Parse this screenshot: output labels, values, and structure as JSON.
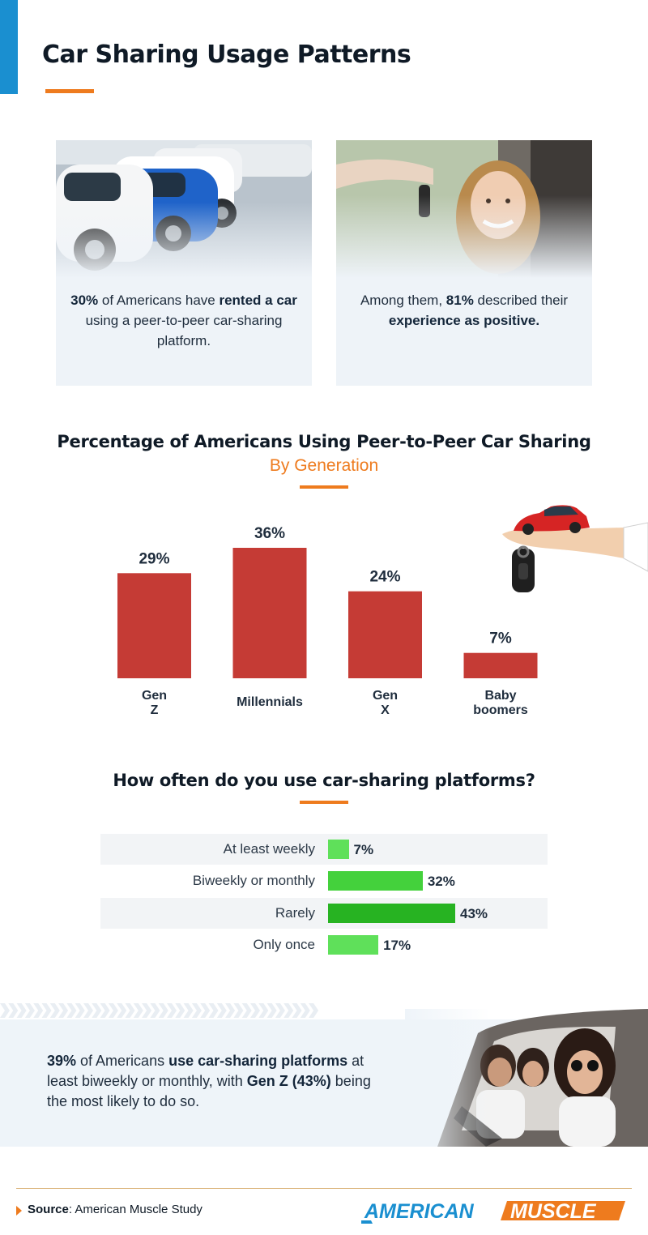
{
  "header": {
    "title": "Car Sharing Usage Patterns"
  },
  "cards": [
    {
      "parts": [
        {
          "b": true,
          "t": "30%"
        },
        {
          "b": false,
          "t": " of Americans have "
        },
        {
          "b": true,
          "t": "rented a car"
        },
        {
          "b": false,
          "t": " using a peer-to-peer car-sharing platform."
        }
      ]
    },
    {
      "parts": [
        {
          "b": false,
          "t": "Among them, "
        },
        {
          "b": true,
          "t": "81%"
        },
        {
          "b": false,
          "t": " described their "
        },
        {
          "b": true,
          "t": "experience as positive."
        }
      ]
    }
  ],
  "chart_data": [
    {
      "type": "bar",
      "title": "Percentage of Americans Using Peer-to-Peer Car Sharing",
      "subtitle": "By Generation",
      "categories": [
        "Gen Z",
        "Millennials",
        "Gen X",
        "Baby boomers"
      ],
      "values": [
        29,
        36,
        24,
        7
      ],
      "value_labels": [
        "29%",
        "36%",
        "24%",
        "7%"
      ],
      "ylim": [
        0,
        36
      ],
      "grid": false,
      "bar_color": "#c53b35"
    },
    {
      "type": "bar",
      "orientation": "horizontal",
      "title": "How often do you use car-sharing platforms?",
      "categories": [
        "At least weekly",
        "Biweekly or monthly",
        "Rarely",
        "Only once"
      ],
      "values": [
        7,
        32,
        43,
        17
      ],
      "value_labels": [
        "7%",
        "32%",
        "43%",
        "17%"
      ],
      "xlim": [
        0,
        43
      ],
      "grid": false,
      "bar_colors": [
        "#5fe05a",
        "#44d13c",
        "#27b322",
        "#5fe05a"
      ]
    }
  ],
  "summary": {
    "parts": [
      {
        "b": true,
        "t": "39%"
      },
      {
        "b": false,
        "t": " of Americans "
      },
      {
        "b": true,
        "t": "use car-sharing platforms"
      },
      {
        "b": false,
        "t": " at least biweekly or monthly, with "
      },
      {
        "b": true,
        "t": "Gen Z (43%)"
      },
      {
        "b": false,
        "t": " being the most likely to do so."
      }
    ]
  },
  "footer": {
    "source_label": "Source",
    "source_text": ": American Muscle Study",
    "logo_text": "AMERICAN",
    "logo_accent": "MUSCLE"
  },
  "colors": {
    "accent": "#ee7b1e",
    "blue": "#1a8fd0",
    "bar_red": "#c53b35"
  },
  "icons": [
    "parked-cars-photo",
    "car-keys-photo",
    "car-on-hand-icon",
    "friends-in-car-photo",
    "chevron-strip",
    "source-arrow-icon"
  ]
}
